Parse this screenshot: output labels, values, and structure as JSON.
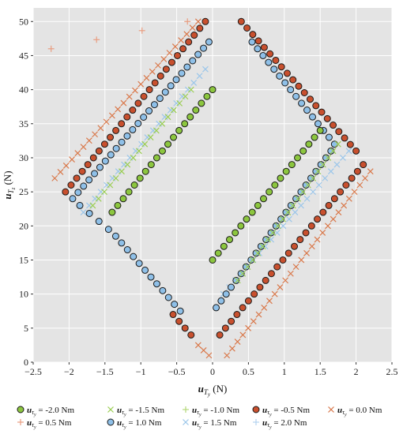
{
  "chart_data": {
    "type": "scatter",
    "title": "",
    "xlabel": {
      "main": "u",
      "sub": "T",
      "subsub": "y",
      "unit": "(N)"
    },
    "ylabel": {
      "main": "u",
      "sub": "T",
      "subsub": "z",
      "unit": "(N)"
    },
    "xlim": [
      -2.5,
      2.5
    ],
    "ylim": [
      0,
      52
    ],
    "xticks": [
      -2.5,
      -2,
      -1.5,
      -1,
      -0.5,
      0,
      0.5,
      1,
      1.5,
      2,
      2.5
    ],
    "xtick_labels": [
      "−2.5",
      "−2",
      "−1.5",
      "−1",
      "−0.5",
      "0",
      "0.5",
      "1",
      "1.5",
      "2",
      "2.5"
    ],
    "yticks": [
      0,
      5,
      10,
      15,
      20,
      25,
      30,
      35,
      40,
      45,
      50
    ],
    "ytick_labels": [
      "0",
      "5",
      "10",
      "15",
      "20",
      "25",
      "30",
      "35",
      "40",
      "45",
      "50"
    ],
    "grid": true,
    "legend_placement": "bottom",
    "series": [
      {
        "name_prefix": "u",
        "name_sub": "τ",
        "name_subsub": "y",
        "name_value": " = -2.0 Nm",
        "marker": "circle",
        "color": "#8cc63f",
        "segments": [
          {
            "x0": 0,
            "y0": 40,
            "x1": -1.4,
            "y1": 22,
            "n": 19
          },
          {
            "x0": 0,
            "y0": 15,
            "x1": 1.5,
            "y1": 34,
            "n": 20
          }
        ]
      },
      {
        "name_prefix": "u",
        "name_sub": "τ",
        "name_subsub": "y",
        "name_value": " = -1.5 Nm",
        "marker": "x",
        "color": "#9acd52",
        "segments": [
          {
            "x0": -0.3,
            "y0": 40,
            "x1": -1.67,
            "y1": 23,
            "n": 18
          },
          {
            "x0": 0.35,
            "y0": 12,
            "x1": 1.75,
            "y1": 32,
            "n": 21
          }
        ]
      },
      {
        "name_prefix": "u",
        "name_sub": "τ",
        "name_subsub": "y",
        "name_value": " = -1.0 Nm",
        "marker": "plus",
        "color": "#b5d87a",
        "segments": []
      },
      {
        "name_prefix": "u",
        "name_sub": "τ",
        "name_subsub": "y",
        "name_value": " = -0.5 Nm",
        "marker": "circle",
        "color": "#c8502e",
        "segments": [
          {
            "x0": -0.1,
            "y0": 50,
            "x1": -2.05,
            "y1": 25,
            "n": 26
          },
          {
            "x0": 0.4,
            "y0": 50,
            "x1": 2.0,
            "y1": 31,
            "n": 21
          },
          {
            "x0": 2.1,
            "y0": 29,
            "x1": 0.1,
            "y1": 4,
            "n": 26
          },
          {
            "x0": -0.3,
            "y0": 4,
            "x1": -0.55,
            "y1": 7,
            "n": 4
          }
        ]
      },
      {
        "name_prefix": "u",
        "name_sub": "τ",
        "name_subsub": "y",
        "name_value": " = 0.0 Nm",
        "marker": "x",
        "color": "#d9784a",
        "segments": [
          {
            "x0": -0.2,
            "y0": 50,
            "x1": -2.2,
            "y1": 27,
            "n": 26
          },
          {
            "x0": 2.2,
            "y0": 28,
            "x1": 0.2,
            "y1": 1,
            "n": 28
          },
          {
            "x0": -0.05,
            "y0": 1,
            "x1": -0.2,
            "y1": 2.5,
            "n": 3
          }
        ]
      },
      {
        "name_prefix": "u",
        "name_sub": "τ",
        "name_subsub": "y",
        "name_value": " = 0.5 Nm",
        "marker": "plus",
        "color": "#e89d80",
        "segments": [
          {
            "x0": -0.35,
            "y0": 50,
            "x1": -2.25,
            "y1": 46,
            "n": 4
          }
        ]
      },
      {
        "name_prefix": "u",
        "name_sub": "τ",
        "name_subsub": "y",
        "name_value": " = 1.0 Nm",
        "marker": "circle",
        "color": "#8fc0e8",
        "segments": [
          {
            "x0": -0.05,
            "y0": 47,
            "x1": -1.95,
            "y1": 24,
            "n": 26
          },
          {
            "x0": -1.85,
            "y0": 23,
            "x1": -1.45,
            "y1": 19.5,
            "n": 4
          },
          {
            "x0": -1.35,
            "y0": 18.5,
            "x1": -0.45,
            "y1": 7.5,
            "n": 12
          },
          {
            "x0": 0.55,
            "y0": 47,
            "x1": 1.7,
            "y1": 32,
            "n": 16
          },
          {
            "x0": 1.65,
            "y0": 31,
            "x1": 0.05,
            "y1": 8,
            "n": 24
          }
        ]
      },
      {
        "name_prefix": "u",
        "name_sub": "τ",
        "name_subsub": "y",
        "name_value": " = 1.5 Nm",
        "marker": "x",
        "color": "#9bc6ea",
        "segments": [
          {
            "x0": -0.1,
            "y0": 43,
            "x1": -1.8,
            "y1": 22,
            "n": 22
          },
          {
            "x0": 0.15,
            "y0": 10,
            "x1": 1.9,
            "y1": 31,
            "n": 22
          }
        ]
      },
      {
        "name_prefix": "u",
        "name_sub": "τ",
        "name_subsub": "y",
        "name_value": " = 2.0 Nm",
        "marker": "plus",
        "color": "#b3d3ef",
        "segments": []
      }
    ],
    "legend_labels": [
      [
        "u",
        "τ",
        "y",
        " = -2.0 Nm"
      ],
      [
        "u",
        "τ",
        "y",
        " = -1.5 Nm"
      ],
      [
        "u",
        "τ",
        "y",
        " = -1.0 Nm"
      ],
      [
        "u",
        "τ",
        "y",
        " = -0.5 Nm"
      ],
      [
        "u",
        "τ",
        "y",
        " = 0.0 Nm"
      ],
      [
        "u",
        "τ",
        "y",
        " = 0.5 Nm"
      ],
      [
        "u",
        "τ",
        "y",
        " = 1.0 Nm"
      ],
      [
        "u",
        "τ",
        "y",
        " = 1.5 Nm"
      ],
      [
        "u",
        "τ",
        "y",
        " = 2.0 Nm"
      ]
    ]
  }
}
